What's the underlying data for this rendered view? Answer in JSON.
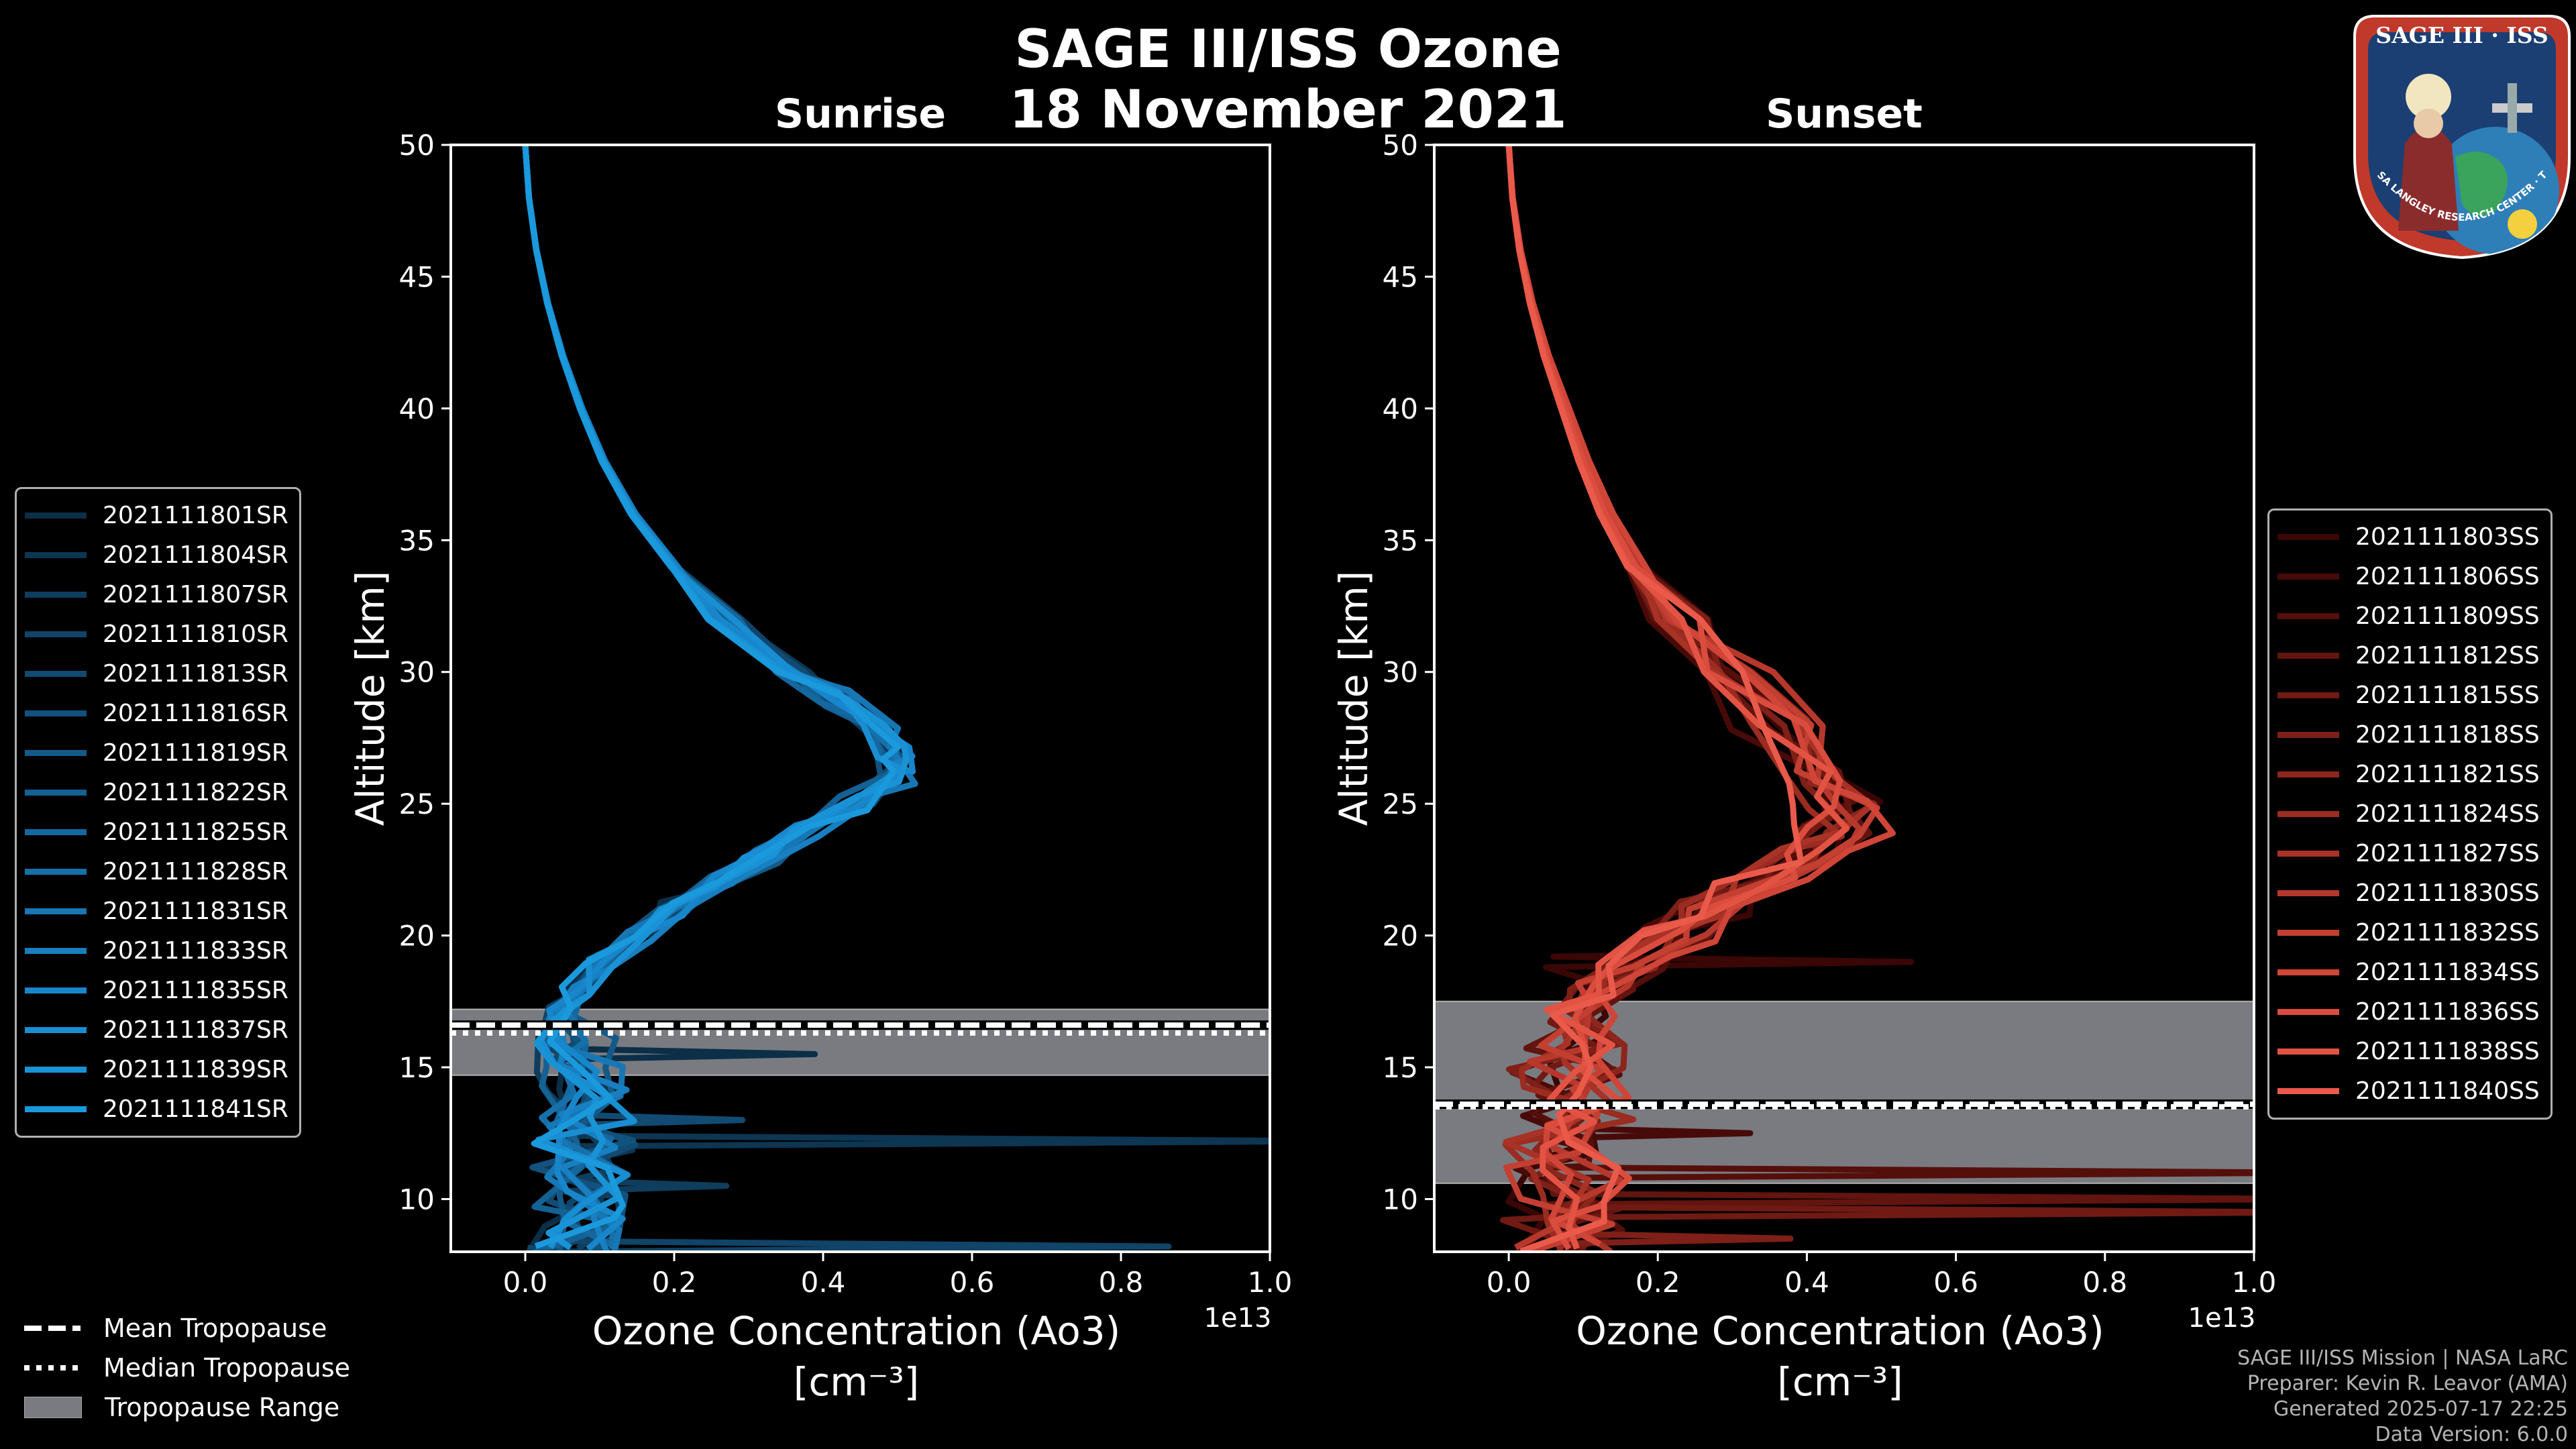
{
  "figure": {
    "title_line1": "SAGE III/ISS Ozone",
    "title_line2": "18 November 2021"
  },
  "credits": {
    "line1": "SAGE III/ISS Mission | NASA LaRC",
    "line2": "Preparer: Kevin R. Leavor (AMA)",
    "line3": "Generated 2025-07-17 22:25",
    "line4": "Data Version: 6.0.0"
  },
  "patch": {
    "title": "SAGE III · ISS",
    "ring_text": "BALL · NASA LANGLEY RESEARCH CENTER · TAS-I · ESA",
    "colors": {
      "ring": "#c0392b",
      "inner": "#1b3f73"
    }
  },
  "colors": {
    "sunrise": "#1a96d8",
    "sunset": "#e8584a",
    "tropopause_band": "#7a7b80",
    "axis": "#ffffff",
    "background": "#000000"
  },
  "shared_legend": {
    "items": [
      {
        "label": "Mean Tropopause",
        "style": "dashed"
      },
      {
        "label": "Median Tropopause",
        "style": "dotted"
      },
      {
        "label": "Tropopause Range",
        "style": "patch"
      }
    ]
  },
  "chart_data": [
    {
      "type": "line",
      "panel": "sunrise",
      "title": "Sunrise",
      "xlabel": "Ozone Concentration (Ao3)",
      "xunit": "[cm⁻³]",
      "ylabel": "Altitude [km]",
      "x_scale_label": "1e13",
      "xlim": [
        -0.1,
        1.0
      ],
      "ylim": [
        8,
        50
      ],
      "xticks": [
        "0.0",
        "0.2",
        "0.4",
        "0.6",
        "0.8",
        "1.0"
      ],
      "xtick_values": [
        0,
        0.2,
        0.4,
        0.6,
        0.8,
        1.0
      ],
      "yticks": [
        "10",
        "15",
        "20",
        "25",
        "30",
        "35",
        "40",
        "45",
        "50"
      ],
      "ytick_values": [
        10,
        15,
        20,
        25,
        30,
        35,
        40,
        45,
        50
      ],
      "legend_location": "left",
      "tropopause": {
        "mean_km": 16.6,
        "median_km": 16.3,
        "range_km": [
          14.7,
          17.2
        ]
      },
      "base_profile": {
        "alt": [
          50,
          48,
          46,
          44,
          42,
          40,
          38,
          36,
          34,
          32,
          30,
          29,
          28,
          27,
          26.5,
          26,
          25,
          24,
          23,
          22,
          21,
          20,
          19,
          18,
          17,
          16,
          15,
          14,
          13,
          12,
          11,
          10,
          9,
          8
        ],
        "o3": [
          0.0,
          0.005,
          0.015,
          0.03,
          0.05,
          0.075,
          0.105,
          0.145,
          0.2,
          0.27,
          0.36,
          0.42,
          0.47,
          0.495,
          0.5,
          0.495,
          0.45,
          0.38,
          0.32,
          0.26,
          0.2,
          0.15,
          0.1,
          0.07,
          0.05,
          0.05,
          0.06,
          0.07,
          0.06,
          0.06,
          0.06,
          0.05,
          0.05,
          0.05
        ]
      },
      "spikes": [
        {
          "alt": 15.5,
          "o3": 0.36
        },
        {
          "alt": 12.2,
          "o3": 1.0
        },
        {
          "alt": 10.5,
          "o3": 0.25
        },
        {
          "alt": 8.2,
          "o3": 0.8
        },
        {
          "alt": 13.0,
          "o3": 0.27
        }
      ],
      "series": [
        {
          "name": "2021111801SR",
          "color": "#0c2f48"
        },
        {
          "name": "2021111804SR",
          "color": "#0d3652"
        },
        {
          "name": "2021111807SR",
          "color": "#0f3d5d"
        },
        {
          "name": "2021111810SR",
          "color": "#104468"
        },
        {
          "name": "2021111813SR",
          "color": "#114b73"
        },
        {
          "name": "2021111816SR",
          "color": "#12527e"
        },
        {
          "name": "2021111819SR",
          "color": "#135a89"
        },
        {
          "name": "2021111822SR",
          "color": "#146194"
        },
        {
          "name": "2021111825SR",
          "color": "#15689f"
        },
        {
          "name": "2021111828SR",
          "color": "#1670aa"
        },
        {
          "name": "2021111831SR",
          "color": "#1777b5"
        },
        {
          "name": "2021111833SR",
          "color": "#187fc0"
        },
        {
          "name": "2021111835SR",
          "color": "#1886cb"
        },
        {
          "name": "2021111837SR",
          "color": "#198ed2"
        },
        {
          "name": "2021111839SR",
          "color": "#1a93d6"
        },
        {
          "name": "2021111841SR",
          "color": "#1a99dc"
        }
      ]
    },
    {
      "type": "line",
      "panel": "sunset",
      "title": "Sunset",
      "xlabel": "Ozone Concentration (Ao3)",
      "xunit": "[cm⁻³]",
      "ylabel": "Altitude [km]",
      "x_scale_label": "1e13",
      "xlim": [
        -0.1,
        1.0
      ],
      "ylim": [
        8,
        50
      ],
      "xticks": [
        "0.0",
        "0.2",
        "0.4",
        "0.6",
        "0.8",
        "1.0"
      ],
      "xtick_values": [
        0,
        0.2,
        0.4,
        0.6,
        0.8,
        1.0
      ],
      "yticks": [
        "10",
        "15",
        "20",
        "25",
        "30",
        "35",
        "40",
        "45",
        "50"
      ],
      "ytick_values": [
        10,
        15,
        20,
        25,
        30,
        35,
        40,
        45,
        50
      ],
      "legend_location": "right",
      "tropopause": {
        "mean_km": 13.6,
        "median_km": 13.5,
        "range_km": [
          10.6,
          17.5
        ]
      },
      "base_profile": {
        "alt": [
          50,
          48,
          46,
          44,
          42,
          40,
          38,
          36,
          34,
          32,
          30,
          28,
          26,
          25,
          24,
          23,
          22,
          21,
          20,
          19,
          18,
          17,
          16,
          15,
          14,
          13,
          12,
          11,
          10,
          9,
          8
        ],
        "o3": [
          0.0,
          0.005,
          0.015,
          0.03,
          0.05,
          0.075,
          0.1,
          0.13,
          0.17,
          0.23,
          0.3,
          0.36,
          0.42,
          0.45,
          0.44,
          0.4,
          0.34,
          0.28,
          0.22,
          0.17,
          0.13,
          0.1,
          0.08,
          0.07,
          0.07,
          0.07,
          0.06,
          0.06,
          0.05,
          0.05,
          0.05
        ]
      },
      "spikes": [
        {
          "alt": 19.0,
          "o3": 0.5
        },
        {
          "alt": 12.5,
          "o3": 0.3
        },
        {
          "alt": 11.0,
          "o3": 1.0
        },
        {
          "alt": 10.0,
          "o3": 1.0
        },
        {
          "alt": 9.5,
          "o3": 1.0
        },
        {
          "alt": 8.5,
          "o3": 0.35
        }
      ],
      "series": [
        {
          "name": "2021111803SS",
          "color": "#3a0606"
        },
        {
          "name": "2021111806SS",
          "color": "#470a08"
        },
        {
          "name": "2021111809SS",
          "color": "#550f0b"
        },
        {
          "name": "2021111812SS",
          "color": "#62140f"
        },
        {
          "name": "2021111815SS",
          "color": "#701a13"
        },
        {
          "name": "2021111818SS",
          "color": "#7e2017"
        },
        {
          "name": "2021111821SS",
          "color": "#8c261c"
        },
        {
          "name": "2021111824SS",
          "color": "#9a2c21"
        },
        {
          "name": "2021111827SS",
          "color": "#a83226"
        },
        {
          "name": "2021111830SS",
          "color": "#b6382c"
        },
        {
          "name": "2021111832SS",
          "color": "#c33f32"
        },
        {
          "name": "2021111834SS",
          "color": "#cf4538"
        },
        {
          "name": "2021111836SS",
          "color": "#da4c3e"
        },
        {
          "name": "2021111838SS",
          "color": "#e35344"
        },
        {
          "name": "2021111840SS",
          "color": "#ea5a4b"
        }
      ]
    }
  ]
}
